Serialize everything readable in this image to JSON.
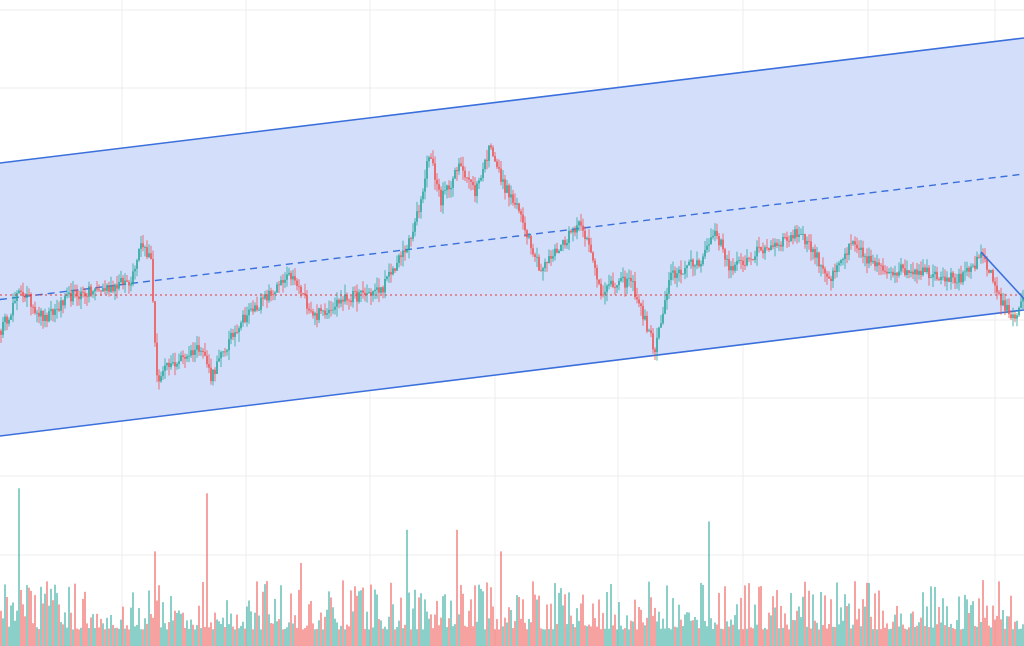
{
  "chart_data": {
    "type": "candlestick",
    "title": "",
    "xlabel": "",
    "ylabel": "",
    "candle_count": 512,
    "ylim": [
      0,
      115
    ],
    "volume_ylim": [
      0,
      100
    ],
    "colors": {
      "up": "#26a69a",
      "down": "#ef5350",
      "channel_line": "#3a6fdc",
      "channel_fill": "#d0dcfa",
      "grid": "#ececec",
      "hline": "#e53935"
    },
    "close_keypoints": [
      [
        0,
        32.5
      ],
      [
        10,
        42.5
      ],
      [
        22,
        35
      ],
      [
        35,
        41
      ],
      [
        50,
        42.5
      ],
      [
        65,
        45
      ],
      [
        70,
        55
      ],
      [
        75,
        50
      ],
      [
        78,
        20
      ],
      [
        82,
        22.5
      ],
      [
        100,
        28.75
      ],
      [
        105,
        21
      ],
      [
        120,
        35
      ],
      [
        145,
        46
      ],
      [
        157,
        36
      ],
      [
        170,
        40
      ],
      [
        190,
        42.5
      ],
      [
        205,
        55
      ],
      [
        210,
        65
      ],
      [
        214,
        77
      ],
      [
        220,
        65
      ],
      [
        230,
        74
      ],
      [
        237,
        67
      ],
      [
        245,
        79
      ],
      [
        250,
        70
      ],
      [
        260,
        61
      ],
      [
        270,
        47.5
      ],
      [
        290,
        60
      ],
      [
        300,
        42.5
      ],
      [
        315,
        45
      ],
      [
        327,
        27.5
      ],
      [
        335,
        46
      ],
      [
        350,
        50
      ],
      [
        357,
        57.5
      ],
      [
        365,
        47.5
      ],
      [
        380,
        52.5
      ],
      [
        400,
        57
      ],
      [
        415,
        45
      ],
      [
        425,
        53.75
      ],
      [
        440,
        47.5
      ],
      [
        460,
        47.5
      ],
      [
        480,
        45
      ],
      [
        491,
        51
      ],
      [
        500,
        40
      ],
      [
        506,
        35
      ],
      [
        511,
        41
      ]
    ],
    "volume_spikes": [
      [
        9,
        95
      ],
      [
        103,
        92
      ],
      [
        77,
        57
      ],
      [
        203,
        70
      ],
      [
        228,
        70
      ],
      [
        354,
        75
      ],
      [
        250,
        57
      ],
      [
        150,
        50
      ]
    ],
    "channel": {
      "upper": [
        [
          0,
          74.25
        ],
        [
          512,
          105.5
        ]
      ],
      "lower": [
        [
          0,
          6
        ],
        [
          512,
          37.5
        ]
      ],
      "median_style": "dashed"
    },
    "horizontal_line": {
      "price": 41.25,
      "style": "dotted"
    },
    "trend_line": [
      [
        490,
        52
      ],
      [
        512,
        39.5
      ]
    ],
    "grid": true
  }
}
